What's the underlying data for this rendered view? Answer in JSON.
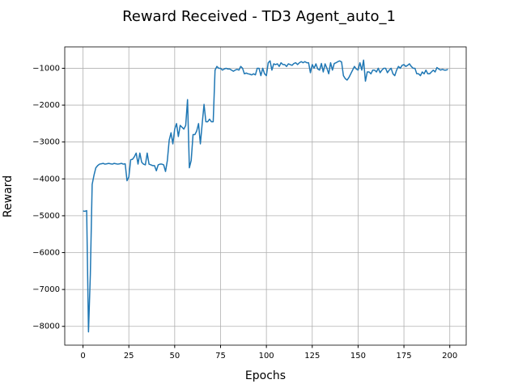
{
  "chart_data": {
    "type": "line",
    "title": "Reward Received - TD3 Agent_auto_1",
    "x_label": "Epochs",
    "y_label": "Reward",
    "x": [
      0,
      1,
      2,
      3,
      4,
      5,
      6,
      7,
      8,
      9,
      10,
      11,
      12,
      13,
      14,
      15,
      16,
      17,
      18,
      19,
      20,
      21,
      22,
      23,
      24,
      25,
      26,
      27,
      28,
      29,
      30,
      31,
      32,
      33,
      34,
      35,
      36,
      37,
      38,
      39,
      40,
      41,
      42,
      43,
      44,
      45,
      46,
      47,
      48,
      49,
      50,
      51,
      52,
      53,
      54,
      55,
      56,
      57,
      58,
      59,
      60,
      61,
      62,
      63,
      64,
      65,
      66,
      67,
      68,
      69,
      70,
      71,
      72,
      73,
      74,
      75,
      76,
      77,
      78,
      79,
      80,
      81,
      82,
      83,
      84,
      85,
      86,
      87,
      88,
      89,
      90,
      91,
      92,
      93,
      94,
      95,
      96,
      97,
      98,
      99,
      100,
      101,
      102,
      103,
      104,
      105,
      106,
      107,
      108,
      109,
      110,
      111,
      112,
      113,
      114,
      115,
      116,
      117,
      118,
      119,
      120,
      121,
      122,
      123,
      124,
      125,
      126,
      127,
      128,
      129,
      130,
      131,
      132,
      133,
      134,
      135,
      136,
      137,
      138,
      139,
      140,
      141,
      142,
      143,
      144,
      145,
      146,
      147,
      148,
      149,
      150,
      151,
      152,
      153,
      154,
      155,
      156,
      157,
      158,
      159,
      160,
      161,
      162,
      163,
      164,
      165,
      166,
      167,
      168,
      169,
      170,
      171,
      172,
      173,
      174,
      175,
      176,
      177,
      178,
      179,
      180,
      181,
      182,
      183,
      184,
      185,
      186,
      187,
      188,
      189,
      190,
      191,
      192,
      193,
      194,
      195,
      196,
      197,
      198,
      199
    ],
    "series": [
      {
        "color": "#1f77b4",
        "values": [
          -4870,
          -4880,
          -4860,
          -8150,
          -6600,
          -4150,
          -3900,
          -3700,
          -3640,
          -3600,
          -3590,
          -3580,
          -3600,
          -3590,
          -3580,
          -3590,
          -3600,
          -3580,
          -3590,
          -3600,
          -3590,
          -3580,
          -3600,
          -3590,
          -4050,
          -3950,
          -3480,
          -3470,
          -3400,
          -3300,
          -3600,
          -3300,
          -3550,
          -3600,
          -3620,
          -3300,
          -3600,
          -3620,
          -3640,
          -3640,
          -3780,
          -3620,
          -3600,
          -3600,
          -3620,
          -3800,
          -3500,
          -2950,
          -2750,
          -3050,
          -2650,
          -2500,
          -2850,
          -2550,
          -2600,
          -2650,
          -2550,
          -1850,
          -3700,
          -3500,
          -2800,
          -2800,
          -2700,
          -2500,
          -3050,
          -2500,
          -1980,
          -2450,
          -2450,
          -2380,
          -2450,
          -2450,
          -1050,
          -950,
          -1000,
          -1000,
          -1050,
          -1020,
          -1000,
          -1020,
          -1020,
          -1050,
          -1080,
          -1050,
          -1030,
          -1050,
          -950,
          -1000,
          -1150,
          -1130,
          -1150,
          -1160,
          -1180,
          -1150,
          -1180,
          -1000,
          -1000,
          -1200,
          -1000,
          -1150,
          -1200,
          -850,
          -800,
          -1050,
          -880,
          -900,
          -880,
          -950,
          -850,
          -900,
          -900,
          -950,
          -880,
          -900,
          -920,
          -870,
          -850,
          -900,
          -850,
          -820,
          -850,
          -820,
          -850,
          -850,
          -1120,
          -900,
          -1000,
          -880,
          -1020,
          -1050,
          -870,
          -1100,
          -880,
          -1000,
          -1150,
          -850,
          -1050,
          -870,
          -850,
          -820,
          -800,
          -830,
          -1200,
          -1280,
          -1320,
          -1250,
          -1150,
          -1050,
          -950,
          -1020,
          -1050,
          -850,
          -1050,
          -780,
          -1350,
          -1100,
          -1100,
          -1150,
          -1050,
          -1050,
          -1100,
          -1000,
          -1120,
          -1050,
          -1000,
          -1000,
          -1120,
          -1050,
          -1000,
          -1150,
          -1200,
          -1050,
          -950,
          -1000,
          -920,
          -900,
          -950,
          -920,
          -880,
          -950,
          -1000,
          -1000,
          -1150,
          -1150,
          -1200,
          -1100,
          -1150,
          -1050,
          -1150,
          -1150,
          -1100,
          -1050,
          -1100,
          -980,
          -1020,
          -1050,
          -1030,
          -1050,
          -1050,
          -1030
        ]
      }
    ],
    "xlim": [
      -9.95,
      208.95
    ],
    "ylim": [
      -8510,
      -420
    ],
    "xticks": [
      0,
      25,
      50,
      75,
      100,
      125,
      150,
      175,
      200
    ],
    "yticks": [
      {
        "value": -8000,
        "label": "−8000"
      },
      {
        "value": -7000,
        "label": "−7000"
      },
      {
        "value": -6000,
        "label": "−6000"
      },
      {
        "value": -5000,
        "label": "−5000"
      },
      {
        "value": -4000,
        "label": "−4000"
      },
      {
        "value": -3000,
        "label": "−3000"
      },
      {
        "value": -2000,
        "label": "−2000"
      },
      {
        "value": -1000,
        "label": "−1000"
      }
    ],
    "grid": true
  }
}
